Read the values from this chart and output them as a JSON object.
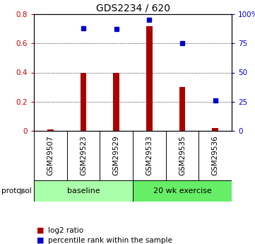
{
  "title": "GDS2234 / 620",
  "samples": [
    "GSM29507",
    "GSM29523",
    "GSM29529",
    "GSM29533",
    "GSM29535",
    "GSM29536"
  ],
  "log2_ratio": [
    0.01,
    0.4,
    0.4,
    0.72,
    0.3,
    0.02
  ],
  "percentile_rank": [
    null,
    88,
    87,
    95,
    75,
    26
  ],
  "ylim_left": [
    0,
    0.8
  ],
  "ylim_right": [
    0,
    100
  ],
  "yticks_left": [
    0,
    0.2,
    0.4,
    0.6,
    0.8
  ],
  "yticks_right": [
    0,
    25,
    50,
    75,
    100
  ],
  "ytick_labels_left": [
    "0",
    "0.2",
    "0.4",
    "0.6",
    "0.8"
  ],
  "ytick_labels_right": [
    "0",
    "25",
    "50",
    "75",
    "100%"
  ],
  "bar_color": "#aa0000",
  "dot_color": "#0000cc",
  "grid_color": "#000000",
  "protocol_groups": [
    {
      "label": "baseline",
      "samples": [
        0,
        1,
        2
      ],
      "color": "#aaffaa"
    },
    {
      "label": "20 wk exercise",
      "samples": [
        3,
        4,
        5
      ],
      "color": "#66ee66"
    }
  ],
  "legend_bar_label": "log2 ratio",
  "legend_dot_label": "percentile rank within the sample",
  "protocol_label": "protocol",
  "background_color": "#ffffff",
  "plot_bg_color": "#ffffff",
  "tick_label_color_left": "#cc0000",
  "tick_label_color_right": "#0000cc",
  "xlabel_bg_color": "#cccccc",
  "bar_width": 0.18
}
